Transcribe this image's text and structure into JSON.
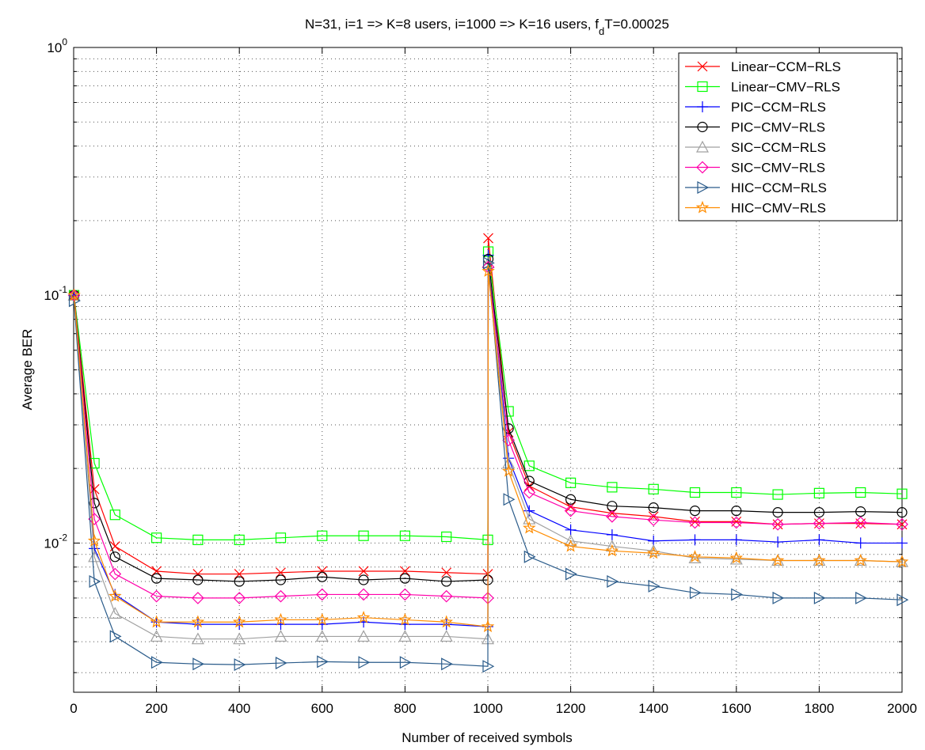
{
  "chart_data": {
    "type": "line",
    "title": "N=31, i=1 => K=8 users, i=1000 => K=16 users, f",
    "title_sub": "d",
    "title_tail": "T=0.00025",
    "xlabel": "Number of received symbols",
    "ylabel": "Average BER",
    "x_scale": "linear",
    "y_scale": "log",
    "xlim": [
      0,
      2000
    ],
    "ylim": [
      0.0025,
      1
    ],
    "x_ticks": [
      0,
      200,
      400,
      600,
      800,
      1000,
      1200,
      1400,
      1600,
      1800,
      2000
    ],
    "x_tick_labels": [
      "0",
      "200",
      "400",
      "600",
      "800",
      "1000",
      "1200",
      "1400",
      "1600",
      "1800",
      "2000"
    ],
    "y_major_ticks": [
      {
        "value": 0.01,
        "base": "10",
        "exp": "-2"
      },
      {
        "value": 0.1,
        "base": "10",
        "exp": "-1"
      },
      {
        "value": 1,
        "base": "10",
        "exp": "0"
      }
    ],
    "grid": true,
    "legend_position": "top-right",
    "x": [
      1,
      50,
      100,
      200,
      300,
      400,
      500,
      600,
      700,
      800,
      900,
      1000,
      1001,
      1050,
      1100,
      1200,
      1300,
      1400,
      1500,
      1600,
      1700,
      1800,
      1900,
      2000
    ],
    "series": [
      {
        "name": "Linear−CCM−RLS",
        "color": "#ff0000",
        "marker": "x",
        "values": [
          0.1,
          0.0165,
          0.0097,
          0.0077,
          0.0075,
          0.0075,
          0.0076,
          0.0077,
          0.0077,
          0.0077,
          0.0076,
          0.0075,
          0.17,
          0.028,
          0.017,
          0.014,
          0.0132,
          0.0128,
          0.0122,
          0.0122,
          0.0119,
          0.012,
          0.012,
          0.0119
        ]
      },
      {
        "name": "Linear−CMV−RLS",
        "color": "#00ff00",
        "marker": "square",
        "values": [
          0.1,
          0.021,
          0.013,
          0.0105,
          0.0103,
          0.0103,
          0.0105,
          0.0107,
          0.0107,
          0.0107,
          0.0106,
          0.0103,
          0.15,
          0.034,
          0.0205,
          0.0175,
          0.0168,
          0.0165,
          0.016,
          0.016,
          0.0157,
          0.0159,
          0.016,
          0.0158
        ]
      },
      {
        "name": "PIC−CCM−RLS",
        "color": "#0000ff",
        "marker": "plus",
        "values": [
          0.1,
          0.0095,
          0.0062,
          0.0048,
          0.0047,
          0.0047,
          0.0047,
          0.0047,
          0.0048,
          0.0047,
          0.0047,
          0.0046,
          0.145,
          0.022,
          0.0135,
          0.0113,
          0.0108,
          0.0102,
          0.0103,
          0.0103,
          0.0101,
          0.0103,
          0.01,
          0.01
        ]
      },
      {
        "name": "PIC−CMV−RLS",
        "color": "#000000",
        "marker": "circle",
        "values": [
          0.1,
          0.0145,
          0.0088,
          0.0072,
          0.0071,
          0.007,
          0.0071,
          0.0073,
          0.0071,
          0.0072,
          0.007,
          0.0071,
          0.14,
          0.029,
          0.0178,
          0.015,
          0.0141,
          0.0139,
          0.0135,
          0.0135,
          0.0133,
          0.0133,
          0.0134,
          0.0133
        ]
      },
      {
        "name": "SIC−CCM−RLS",
        "color": "#a0a0a0",
        "marker": "triangle-up",
        "values": [
          0.1,
          0.0088,
          0.0052,
          0.0042,
          0.0041,
          0.0041,
          0.0042,
          0.0042,
          0.0042,
          0.0042,
          0.0042,
          0.0041,
          0.135,
          0.021,
          0.0125,
          0.0102,
          0.0097,
          0.0093,
          0.0087,
          0.0086,
          0.0085,
          0.0085,
          0.0085,
          0.0084
        ]
      },
      {
        "name": "SIC−CMV−RLS",
        "color": "#ff00aa",
        "marker": "diamond",
        "values": [
          0.1,
          0.0125,
          0.0075,
          0.0061,
          0.006,
          0.006,
          0.0061,
          0.0062,
          0.0062,
          0.0062,
          0.0061,
          0.006,
          0.13,
          0.026,
          0.016,
          0.0135,
          0.0128,
          0.0124,
          0.0121,
          0.0121,
          0.0119,
          0.012,
          0.0121,
          0.0119
        ]
      },
      {
        "name": "HIC−CCM−RLS",
        "color": "#2a5b8a",
        "marker": "triangle-right",
        "values": [
          0.095,
          0.007,
          0.0042,
          0.0033,
          0.00325,
          0.00323,
          0.00328,
          0.00332,
          0.0033,
          0.0033,
          0.00325,
          0.00318,
          0.135,
          0.015,
          0.0088,
          0.0075,
          0.007,
          0.0067,
          0.0063,
          0.0062,
          0.006,
          0.006,
          0.006,
          0.0059
        ]
      },
      {
        "name": "HIC−CMV−RLS",
        "color": "#ff8c00",
        "marker": "star",
        "values": [
          0.1,
          0.0102,
          0.0061,
          0.0048,
          0.0048,
          0.0048,
          0.0049,
          0.0049,
          0.005,
          0.0049,
          0.0048,
          0.0046,
          0.125,
          0.0195,
          0.0115,
          0.0097,
          0.0093,
          0.0091,
          0.0088,
          0.0087,
          0.0085,
          0.0085,
          0.0085,
          0.0084
        ]
      }
    ]
  }
}
